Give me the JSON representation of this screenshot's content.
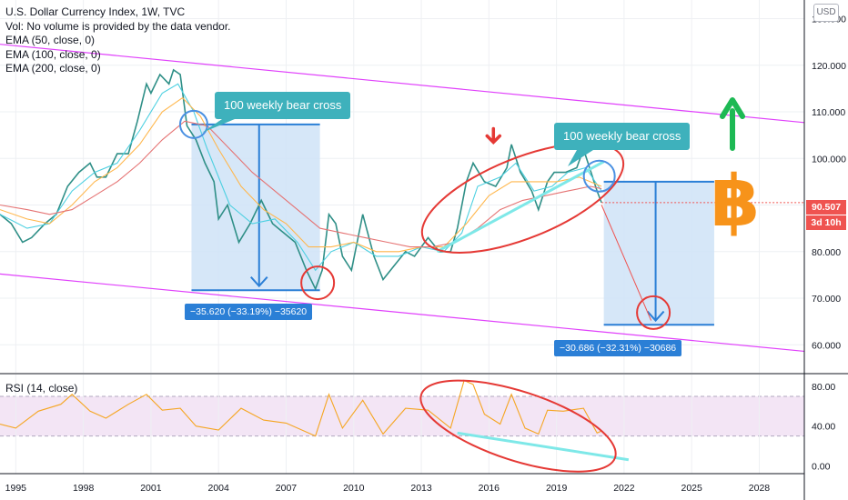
{
  "legend": {
    "title": "U.S. Dollar Currency Index, 1W, TVC",
    "volume_note": "Vol: No volume is provided by the data vendor.",
    "ema50": "EMA (50, close, 0)",
    "ema100": "EMA (100, close, 0)",
    "ema200": "EMA (200, close, 0)"
  },
  "currency_button": "USD",
  "rsi_label": "RSI (14, close)",
  "last_price": "90.507",
  "bar_countdown": "3d 10h",
  "annotations": {
    "callout_left": "100 weekly bear cross",
    "callout_right": "100 weekly bear cross",
    "measure_left": "−35.620 (−33.19%) −35620",
    "measure_right": "−30.686 (−32.31%) −30686"
  },
  "colors": {
    "price_up": "#26a69a",
    "price_down": "#ef5350",
    "ema50": "#4dd0e1",
    "ema100": "#ffb74d",
    "ema200": "#e57373",
    "channel": "#e040fb",
    "rsi_line": "#f5a623",
    "rsi_band": "#f3e5f5",
    "trendline": "#7ee8e8",
    "highlight_circle": "#e53935",
    "bear_cross_circle": "#4a90e2",
    "measure_box": "#cfe3f7",
    "measure_line": "#2b7fd6",
    "bitcoin": "#f7931a",
    "up_arrow": "#1db954",
    "down_arrow": "#e53935",
    "price_tag": "#ef5350"
  },
  "chart_data": {
    "type": "line",
    "price_axis": {
      "ylim": [
        54,
        134
      ],
      "ticks": [
        60,
        70,
        80,
        90,
        100,
        110,
        120,
        130
      ],
      "tick_labels": [
        "60.000",
        "70.000",
        "80.000",
        "90.000",
        "100.000",
        "110.000",
        "120.000",
        "130.000"
      ]
    },
    "time_axis": {
      "xlim": [
        1994.3,
        2030.0
      ],
      "ticks": [
        1995,
        1998,
        2001,
        2004,
        2007,
        2010,
        2013,
        2016,
        2019,
        2022,
        2025,
        2028
      ],
      "tick_labels": [
        "1995",
        "1998",
        "2001",
        "2004",
        "2007",
        "2010",
        "2013",
        "2016",
        "2019",
        "2022",
        "2025",
        "2028"
      ]
    },
    "rsi_axis": {
      "ylim": [
        -8,
        92
      ],
      "ticks": [
        0,
        40,
        80
      ],
      "tick_labels": [
        "0.00",
        "40.00",
        "80.00"
      ],
      "band": [
        30,
        70
      ]
    },
    "series": [
      {
        "name": "U.S. Dollar Currency Index",
        "points": [
          [
            1994.3,
            88
          ],
          [
            1994.8,
            86
          ],
          [
            1995.3,
            82
          ],
          [
            1995.7,
            83
          ],
          [
            1996.3,
            86
          ],
          [
            1996.8,
            88
          ],
          [
            1997.3,
            94
          ],
          [
            1997.8,
            97
          ],
          [
            1998.3,
            99
          ],
          [
            1998.6,
            96
          ],
          [
            1999.0,
            96
          ],
          [
            1999.5,
            101
          ],
          [
            2000.0,
            101
          ],
          [
            2000.4,
            108
          ],
          [
            2000.8,
            116
          ],
          [
            2001.0,
            114
          ],
          [
            2001.4,
            118
          ],
          [
            2001.8,
            116
          ],
          [
            2002.0,
            119
          ],
          [
            2002.3,
            118
          ],
          [
            2002.6,
            107
          ],
          [
            2003.0,
            104
          ],
          [
            2003.4,
            99
          ],
          [
            2003.8,
            95
          ],
          [
            2004.0,
            87
          ],
          [
            2004.4,
            90
          ],
          [
            2004.9,
            82
          ],
          [
            2005.4,
            86
          ],
          [
            2005.9,
            91
          ],
          [
            2006.4,
            86
          ],
          [
            2006.9,
            84
          ],
          [
            2007.4,
            82
          ],
          [
            2007.9,
            76
          ],
          [
            2008.3,
            72
          ],
          [
            2008.6,
            76
          ],
          [
            2008.9,
            88
          ],
          [
            2009.2,
            86
          ],
          [
            2009.5,
            79
          ],
          [
            2009.9,
            76
          ],
          [
            2010.4,
            88
          ],
          [
            2010.9,
            79
          ],
          [
            2011.3,
            74
          ],
          [
            2011.8,
            77
          ],
          [
            2012.3,
            80
          ],
          [
            2012.7,
            79
          ],
          [
            2013.3,
            83
          ],
          [
            2013.8,
            80
          ],
          [
            2014.3,
            80
          ],
          [
            2014.6,
            85
          ],
          [
            2015.0,
            95
          ],
          [
            2015.3,
            99
          ],
          [
            2015.8,
            95
          ],
          [
            2016.3,
            94
          ],
          [
            2016.8,
            98
          ],
          [
            2017.0,
            103
          ],
          [
            2017.4,
            97
          ],
          [
            2017.9,
            93
          ],
          [
            2018.2,
            89
          ],
          [
            2018.6,
            95
          ],
          [
            2018.9,
            97
          ],
          [
            2019.4,
            97
          ],
          [
            2019.9,
            98
          ],
          [
            2020.2,
            102
          ],
          [
            2020.4,
            99
          ],
          [
            2020.8,
            93
          ],
          [
            2021.0,
            90.5
          ]
        ]
      },
      {
        "name": "EMA (50, close, 0)",
        "points": [
          [
            1994.3,
            88
          ],
          [
            1995.5,
            85
          ],
          [
            1996.5,
            86
          ],
          [
            1997.5,
            93
          ],
          [
            1998.5,
            97
          ],
          [
            1999.5,
            99
          ],
          [
            2000.5,
            106
          ],
          [
            2001.5,
            114
          ],
          [
            2002.2,
            116
          ],
          [
            2002.9,
            110
          ],
          [
            2003.5,
            102
          ],
          [
            2004.5,
            90
          ],
          [
            2005.5,
            86
          ],
          [
            2006.5,
            87
          ],
          [
            2007.5,
            82
          ],
          [
            2008.3,
            76
          ],
          [
            2009.0,
            80
          ],
          [
            2010.0,
            82
          ],
          [
            2011.0,
            79
          ],
          [
            2012.0,
            79
          ],
          [
            2013.0,
            81
          ],
          [
            2014.0,
            80
          ],
          [
            2014.8,
            84
          ],
          [
            2015.5,
            94
          ],
          [
            2016.5,
            96
          ],
          [
            2017.2,
            99
          ],
          [
            2018.0,
            93
          ],
          [
            2018.8,
            94
          ],
          [
            2019.5,
            97
          ],
          [
            2020.3,
            98
          ],
          [
            2021.0,
            93
          ]
        ]
      },
      {
        "name": "EMA (100, close, 0)",
        "points": [
          [
            1994.3,
            89
          ],
          [
            1995.5,
            87
          ],
          [
            1996.5,
            86
          ],
          [
            1997.5,
            90
          ],
          [
            1998.5,
            95
          ],
          [
            1999.5,
            98
          ],
          [
            2000.5,
            103
          ],
          [
            2001.5,
            110
          ],
          [
            2002.4,
            113
          ],
          [
            2003.2,
            109
          ],
          [
            2004.0,
            102
          ],
          [
            2005.0,
            94
          ],
          [
            2006.0,
            89
          ],
          [
            2007.0,
            86
          ],
          [
            2008.0,
            81
          ],
          [
            2009.0,
            81
          ],
          [
            2010.0,
            82
          ],
          [
            2011.0,
            80
          ],
          [
            2012.0,
            80
          ],
          [
            2013.0,
            81
          ],
          [
            2014.0,
            81
          ],
          [
            2015.0,
            86
          ],
          [
            2016.0,
            92
          ],
          [
            2017.0,
            95
          ],
          [
            2018.0,
            95
          ],
          [
            2019.0,
            95
          ],
          [
            2020.0,
            96
          ],
          [
            2021.0,
            94
          ]
        ]
      },
      {
        "name": "EMA (200, close, 0)",
        "points": [
          [
            1994.3,
            90
          ],
          [
            1995.5,
            89
          ],
          [
            1996.5,
            88
          ],
          [
            1997.5,
            89
          ],
          [
            1998.5,
            92
          ],
          [
            1999.5,
            95
          ],
          [
            2000.5,
            99
          ],
          [
            2001.5,
            104
          ],
          [
            2002.5,
            108
          ],
          [
            2003.5,
            107
          ],
          [
            2004.5,
            102
          ],
          [
            2005.5,
            97
          ],
          [
            2006.5,
            93
          ],
          [
            2007.5,
            89
          ],
          [
            2008.5,
            85
          ],
          [
            2009.5,
            84
          ],
          [
            2010.5,
            83
          ],
          [
            2011.5,
            82
          ],
          [
            2012.5,
            81
          ],
          [
            2013.5,
            81
          ],
          [
            2014.5,
            82
          ],
          [
            2015.5,
            85
          ],
          [
            2016.5,
            89
          ],
          [
            2017.5,
            91
          ],
          [
            2018.5,
            92
          ],
          [
            2019.5,
            93
          ],
          [
            2020.5,
            94
          ],
          [
            2021.0,
            93.5
          ]
        ]
      },
      {
        "name": "RSI (14, close)",
        "points": [
          [
            1994.3,
            42
          ],
          [
            1995.0,
            38
          ],
          [
            1996.0,
            55
          ],
          [
            1997.0,
            62
          ],
          [
            1997.5,
            72
          ],
          [
            1998.3,
            55
          ],
          [
            1999.0,
            48
          ],
          [
            2000.0,
            62
          ],
          [
            2000.8,
            72
          ],
          [
            2001.5,
            56
          ],
          [
            2002.3,
            58
          ],
          [
            2003.0,
            40
          ],
          [
            2004.0,
            36
          ],
          [
            2005.0,
            58
          ],
          [
            2006.0,
            46
          ],
          [
            2007.0,
            43
          ],
          [
            2008.3,
            30
          ],
          [
            2008.9,
            72
          ],
          [
            2009.5,
            38
          ],
          [
            2010.4,
            66
          ],
          [
            2011.3,
            32
          ],
          [
            2012.3,
            58
          ],
          [
            2013.3,
            56
          ],
          [
            2014.3,
            38
          ],
          [
            2014.9,
            86
          ],
          [
            2015.3,
            82
          ],
          [
            2015.8,
            52
          ],
          [
            2016.5,
            42
          ],
          [
            2017.0,
            72
          ],
          [
            2017.6,
            38
          ],
          [
            2018.2,
            32
          ],
          [
            2018.6,
            56
          ],
          [
            2019.3,
            55
          ],
          [
            2020.2,
            58
          ],
          [
            2020.8,
            33
          ],
          [
            2021.0,
            35
          ]
        ]
      }
    ]
  }
}
